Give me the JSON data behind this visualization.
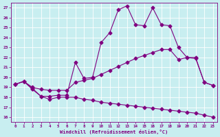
{
  "xlabel": "Windchill (Refroidissement éolien,°C)",
  "background_color": "#c8eef0",
  "line_color": "#800080",
  "grid_color": "#ffffff",
  "xlim": [
    -0.5,
    23.5
  ],
  "ylim": [
    15.5,
    27.5
  ],
  "yticks": [
    16,
    17,
    18,
    19,
    20,
    21,
    22,
    23,
    24,
    25,
    26,
    27
  ],
  "xticks": [
    0,
    1,
    2,
    3,
    4,
    5,
    6,
    7,
    8,
    9,
    10,
    11,
    12,
    13,
    14,
    15,
    16,
    17,
    18,
    19,
    20,
    21,
    22,
    23
  ],
  "line1_x": [
    0,
    1,
    2,
    3,
    4,
    5,
    6,
    7,
    8,
    9,
    10,
    11,
    12,
    13,
    14,
    15,
    16,
    17,
    18,
    19,
    20,
    21,
    22,
    23
  ],
  "line1_y": [
    19.3,
    19.6,
    18.8,
    18.1,
    18.1,
    18.2,
    18.2,
    21.5,
    19.9,
    20.0,
    23.5,
    24.5,
    26.8,
    27.2,
    25.3,
    25.2,
    27.0,
    25.3,
    25.2,
    23.0,
    22.0,
    22.0,
    19.5,
    19.2
  ],
  "line2_x": [
    0,
    1,
    2,
    3,
    4,
    5,
    6,
    7,
    8,
    9,
    10,
    11,
    12,
    13,
    14,
    15,
    16,
    17,
    18,
    19,
    20,
    21,
    22,
    23
  ],
  "line2_y": [
    19.3,
    19.6,
    19.0,
    18.8,
    18.7,
    18.7,
    18.7,
    19.5,
    19.7,
    19.9,
    20.3,
    20.7,
    21.1,
    21.5,
    21.9,
    22.2,
    22.5,
    22.8,
    22.8,
    21.8,
    22.0,
    21.9,
    19.5,
    19.2
  ],
  "line3_x": [
    0,
    1,
    2,
    3,
    4,
    5,
    6,
    7,
    8,
    9,
    10,
    11,
    12,
    13,
    14,
    15,
    16,
    17,
    18,
    19,
    20,
    21,
    22,
    23
  ],
  "line3_y": [
    19.3,
    19.6,
    18.9,
    18.1,
    17.8,
    18.0,
    18.0,
    18.0,
    17.8,
    17.7,
    17.5,
    17.4,
    17.3,
    17.2,
    17.1,
    17.0,
    16.9,
    16.8,
    16.7,
    16.6,
    16.5,
    16.4,
    16.2,
    16.0
  ],
  "marker": "D",
  "markersize": 2.5
}
